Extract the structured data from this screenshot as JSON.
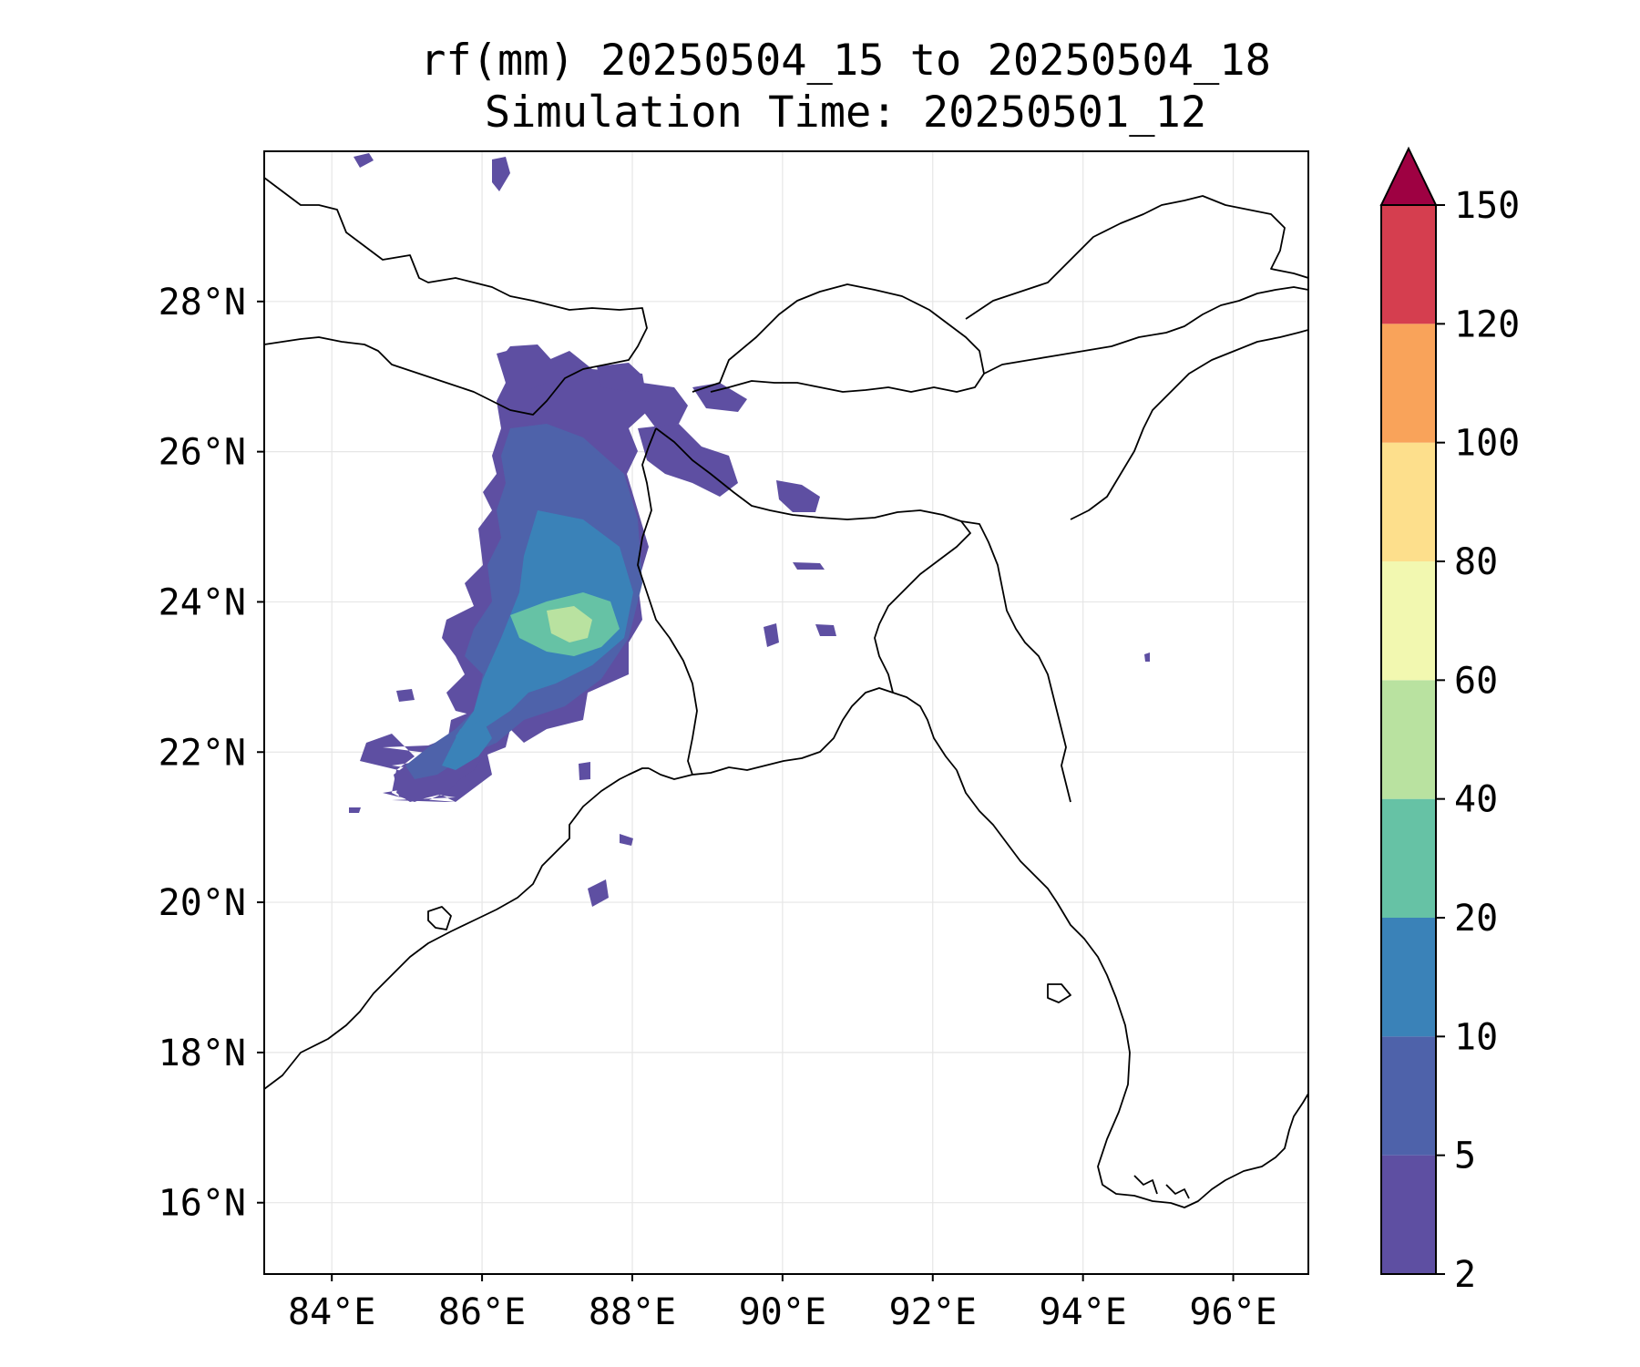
{
  "title": {
    "line1": "rf(mm) 20250504_15 to 20250504_18",
    "line2": "Simulation Time: 20250501_12"
  },
  "map": {
    "lon_range": [
      83.1,
      97.0
    ],
    "lat_range": [
      15.05,
      30.0
    ],
    "x_ticks": [
      "84°E",
      "86°E",
      "88°E",
      "90°E",
      "92°E",
      "94°E",
      "96°E"
    ],
    "y_ticks": [
      "16°N",
      "18°N",
      "20°N",
      "22°N",
      "24°N",
      "26°N",
      "28°N"
    ],
    "grid": true
  },
  "colorbar": {
    "levels": [
      "2",
      "5",
      "10",
      "20",
      "40",
      "60",
      "80",
      "100",
      "120",
      "150"
    ],
    "colors": [
      "#5e4fa2",
      "#4e62aa",
      "#3a82b8",
      "#66c2a5",
      "#b9e2a0",
      "#f2f8b0",
      "#fddf8c",
      "#f9a35a",
      "#d53e4f",
      "#9e0142"
    ],
    "extend": "max"
  }
}
